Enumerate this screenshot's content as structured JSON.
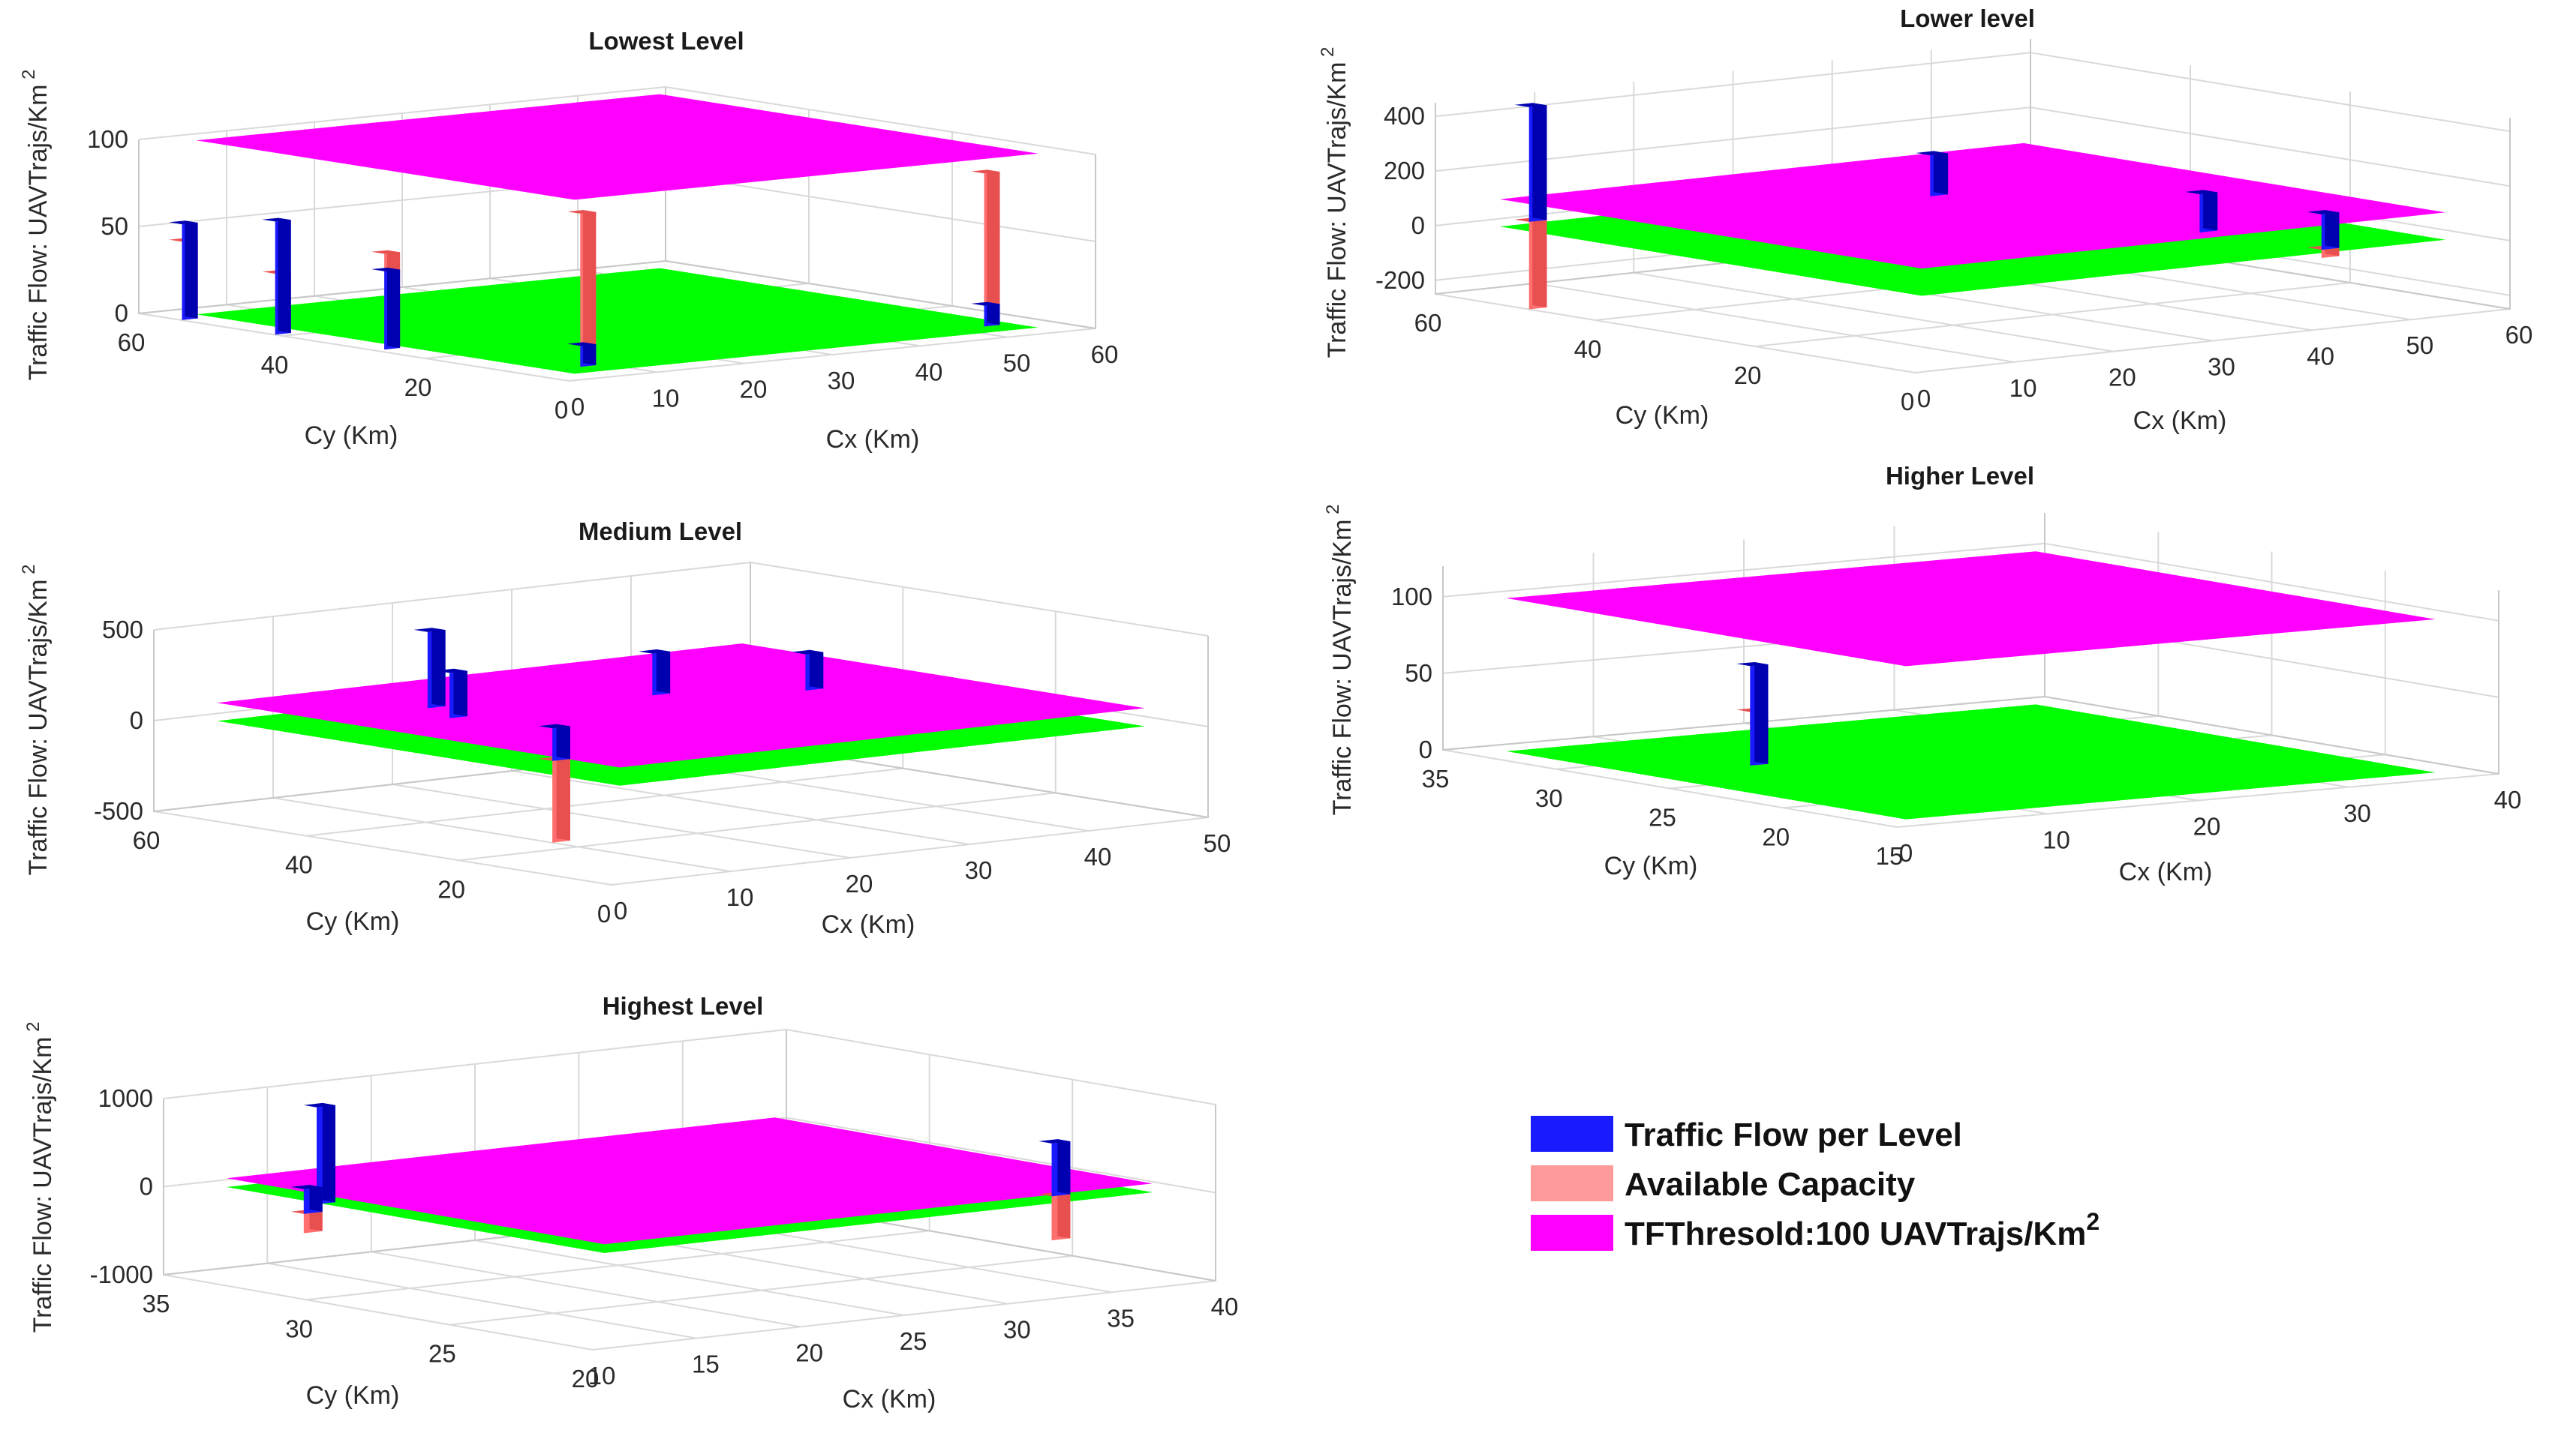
{
  "legend": {
    "items": [
      {
        "label": "Traffic Flow per Level",
        "color": "#1a1aff"
      },
      {
        "label": "Available Capacity",
        "color": "#ff9a9a"
      },
      {
        "label": "TFThresold:100 UAVTrajs/Km",
        "sup": "2",
        "color": "#ff00ff"
      }
    ]
  },
  "chart_data": [
    {
      "type": "bar3d",
      "title": "Lowest Level",
      "xlabel": "Cx (Km)",
      "ylabel": "Cy (Km)",
      "zlabel": "Traffic Flow: UAVTrajs/Km",
      "zlabel_sup": "2",
      "xticks": [
        "0",
        "10",
        "20",
        "30",
        "40",
        "50",
        "60"
      ],
      "yticks": [
        "0",
        "20",
        "40",
        "60"
      ],
      "zticks": [
        "0",
        "50",
        "100"
      ],
      "xlim": [
        0,
        60
      ],
      "ylim": [
        0,
        60
      ],
      "zlim": [
        0,
        100
      ],
      "threshold": 100,
      "series": [
        {
          "name": "Traffic Flow per Level",
          "points": [
            {
              "x": 1,
              "y": 55,
              "z": 55
            },
            {
              "x": 1,
              "y": 42,
              "z": 65
            },
            {
              "x": 2,
              "y": 28,
              "z": 45
            },
            {
              "x": 8,
              "y": 8,
              "z": 12
            },
            {
              "x": 54,
              "y": 8,
              "z": 12
            }
          ]
        },
        {
          "name": "Available Capacity",
          "points": [
            {
              "x": 1,
              "y": 55,
              "z": 45
            },
            {
              "x": 1,
              "y": 42,
              "z": 35
            },
            {
              "x": 2,
              "y": 28,
              "z": 55
            },
            {
              "x": 8,
              "y": 8,
              "z": 88
            },
            {
              "x": 54,
              "y": 8,
              "z": 88
            }
          ]
        }
      ]
    },
    {
      "type": "bar3d",
      "title": "Lower level",
      "xlabel": "Cx (Km)",
      "ylabel": "Cy (Km)",
      "zlabel": "Traffic Flow: UAVTrajs/Km",
      "zlabel_sup": "2",
      "xticks": [
        "0",
        "10",
        "20",
        "30",
        "40",
        "50",
        "60"
      ],
      "yticks": [
        "0",
        "20",
        "40",
        "60"
      ],
      "zticks": [
        "-200",
        "0",
        "200",
        "400"
      ],
      "xlim": [
        0,
        60
      ],
      "ylim": [
        0,
        60
      ],
      "zlim": [
        -250,
        450
      ],
      "threshold": 100,
      "series": [
        {
          "name": "Traffic Flow per Level",
          "points": [
            {
              "x": 8,
              "y": 58,
              "z": 420
            },
            {
              "x": 42,
              "y": 50,
              "z": 150
            },
            {
              "x": 45,
              "y": 20,
              "z": 140
            },
            {
              "x": 46,
              "y": 6,
              "z": 130
            }
          ]
        },
        {
          "name": "Available Capacity",
          "points": [
            {
              "x": 8,
              "y": 58,
              "z": -320
            },
            {
              "x": 46,
              "y": 6,
              "z": -30
            }
          ]
        }
      ]
    },
    {
      "type": "bar3d",
      "title": "Medium Level",
      "xlabel": "Cx (Km)",
      "ylabel": "Cy (Km)",
      "zlabel": "Traffic Flow: UAVTrajs/Km",
      "zlabel_sup": "2",
      "xticks": [
        "0",
        "10",
        "20",
        "30",
        "40",
        "50"
      ],
      "yticks": [
        "0",
        "20",
        "40",
        "60"
      ],
      "zticks": [
        "-500",
        "0",
        "500"
      ],
      "xlim": [
        0,
        50
      ],
      "ylim": [
        0,
        60
      ],
      "zlim": [
        -500,
        500
      ],
      "threshold": 100,
      "series": [
        {
          "name": "Traffic Flow per Level",
          "points": [
            {
              "x": 18,
              "y": 52,
              "z": 420
            },
            {
              "x": 16,
              "y": 46,
              "z": 250
            },
            {
              "x": 33,
              "y": 46,
              "z": 230
            },
            {
              "x": 42,
              "y": 40,
              "z": 200
            },
            {
              "x": 8,
              "y": 20,
              "z": 180
            }
          ]
        },
        {
          "name": "Available Capacity",
          "points": [
            {
              "x": 8,
              "y": 20,
              "z": -450
            }
          ]
        }
      ]
    },
    {
      "type": "bar3d",
      "title": "Higher Level",
      "xlabel": "Cx (Km)",
      "ylabel": "Cy (Km)",
      "zlabel": "Traffic Flow: UAVTrajs/Km",
      "zlabel_sup": "2",
      "xticks": [
        "0",
        "10",
        "20",
        "30",
        "40"
      ],
      "yticks": [
        "15",
        "20",
        "25",
        "30",
        "35"
      ],
      "zticks": [
        "0",
        "50",
        "100"
      ],
      "xlim": [
        0,
        40
      ],
      "ylim": [
        15,
        35
      ],
      "zlim": [
        0,
        120
      ],
      "threshold": 100,
      "series": [
        {
          "name": "Traffic Flow per Level",
          "points": [
            {
              "x": 10,
              "y": 28,
              "z": 65
            }
          ]
        },
        {
          "name": "Available Capacity",
          "points": [
            {
              "x": 10,
              "y": 28,
              "z": 35
            }
          ]
        }
      ]
    },
    {
      "type": "bar3d",
      "title": "Highest Level",
      "xlabel": "Cx (Km)",
      "ylabel": "Cy (Km)",
      "zlabel": "Traffic Flow: UAVTrajs/Km",
      "zlabel_sup": "2",
      "xticks": [
        "10",
        "15",
        "20",
        "25",
        "30",
        "35",
        "40"
      ],
      "yticks": [
        "20",
        "25",
        "30",
        "35"
      ],
      "zticks": [
        "-1000",
        "0",
        "1000"
      ],
      "xlim": [
        10,
        40
      ],
      "ylim": [
        20,
        35
      ],
      "zlim": [
        -1000,
        1000
      ],
      "threshold": 100,
      "series": [
        {
          "name": "Traffic Flow per Level",
          "points": [
            {
              "x": 12,
              "y": 31,
              "z": 1100
            },
            {
              "x": 35,
              "y": 22,
              "z": 600
            },
            {
              "x": 10,
              "y": 30,
              "z": 280
            }
          ]
        },
        {
          "name": "Available Capacity",
          "points": [
            {
              "x": 35,
              "y": 22,
              "z": -500
            },
            {
              "x": 10,
              "y": 30,
              "z": -220
            }
          ]
        }
      ]
    }
  ]
}
